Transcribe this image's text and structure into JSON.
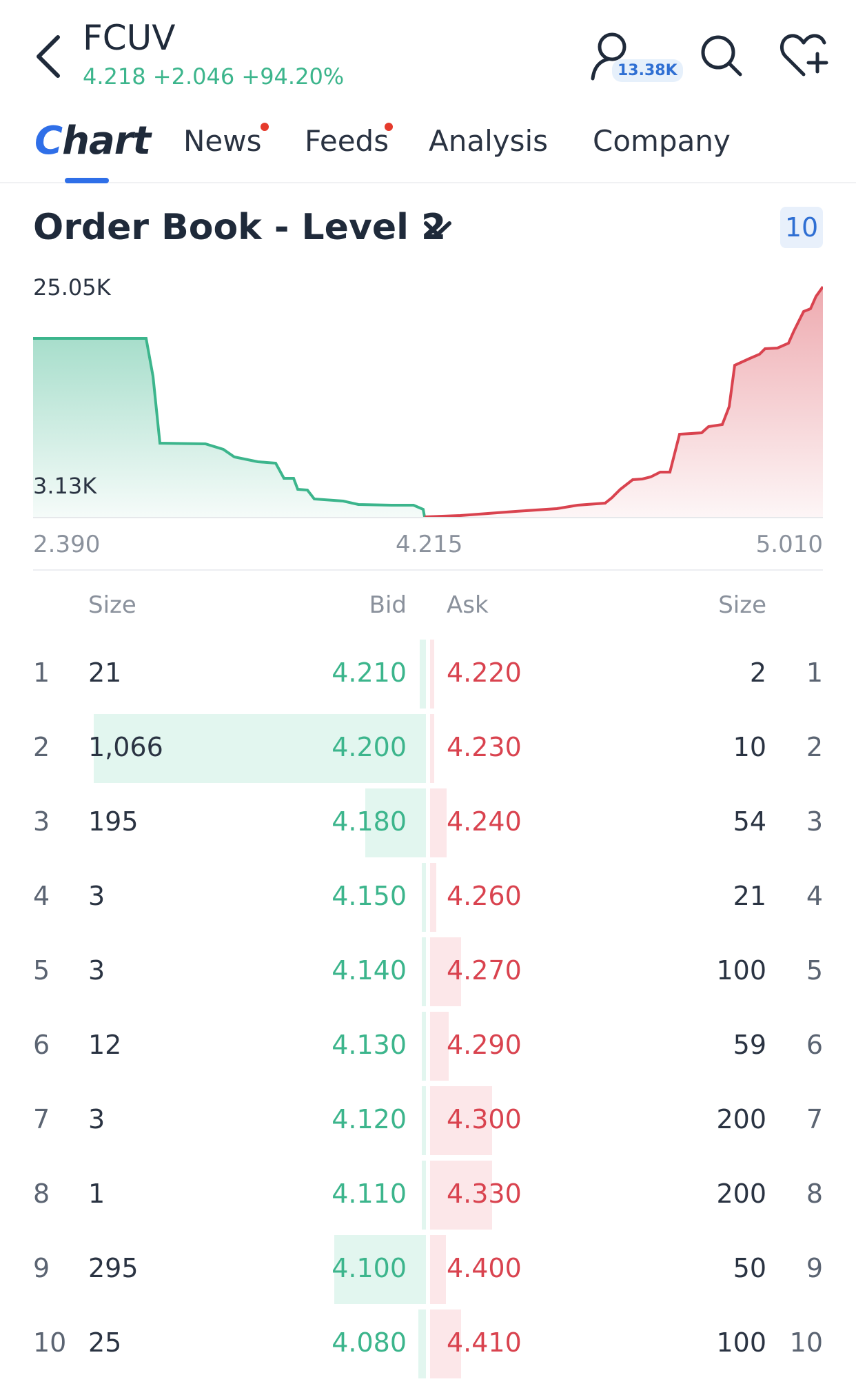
{
  "header": {
    "ticker": "FCUV",
    "quote": "4.218 +2.046 +94.20%",
    "followers": "13.38K"
  },
  "tabs": [
    {
      "label": "Chart",
      "active": true,
      "dot": false
    },
    {
      "label": "News",
      "active": false,
      "dot": true
    },
    {
      "label": "Feeds",
      "active": false,
      "dot": true
    },
    {
      "label": "Analysis",
      "active": false,
      "dot": false
    },
    {
      "label": "Company",
      "active": false,
      "dot": false
    }
  ],
  "section": {
    "title": "Order Book - Level 2",
    "level": "10"
  },
  "depth_chart": {
    "y_max_label": "25.05K",
    "y_min_label": "3.13K",
    "x_labels": [
      "2.390",
      "4.215",
      "5.010"
    ],
    "colors": {
      "bid": "#3cb58c",
      "ask": "#d9434f"
    }
  },
  "table": {
    "headers": {
      "bid_size": "Size",
      "bid": "Bid",
      "ask": "Ask",
      "ask_size": "Size"
    },
    "rows": [
      {
        "n": "1",
        "bid_size": "21",
        "bid": "4.210",
        "ask": "4.220",
        "ask_size": "2",
        "bid_qty": 21,
        "ask_qty": 2
      },
      {
        "n": "2",
        "bid_size": "1,066",
        "bid": "4.200",
        "ask": "4.230",
        "ask_size": "10",
        "bid_qty": 1066,
        "ask_qty": 10
      },
      {
        "n": "3",
        "bid_size": "195",
        "bid": "4.180",
        "ask": "4.240",
        "ask_size": "54",
        "bid_qty": 195,
        "ask_qty": 54
      },
      {
        "n": "4",
        "bid_size": "3",
        "bid": "4.150",
        "ask": "4.260",
        "ask_size": "21",
        "bid_qty": 3,
        "ask_qty": 21
      },
      {
        "n": "5",
        "bid_size": "3",
        "bid": "4.140",
        "ask": "4.270",
        "ask_size": "100",
        "bid_qty": 3,
        "ask_qty": 100
      },
      {
        "n": "6",
        "bid_size": "12",
        "bid": "4.130",
        "ask": "4.290",
        "ask_size": "59",
        "bid_qty": 12,
        "ask_qty": 59
      },
      {
        "n": "7",
        "bid_size": "3",
        "bid": "4.120",
        "ask": "4.300",
        "ask_size": "200",
        "bid_qty": 3,
        "ask_qty": 200
      },
      {
        "n": "8",
        "bid_size": "1",
        "bid": "4.110",
        "ask": "4.330",
        "ask_size": "200",
        "bid_qty": 1,
        "ask_qty": 200
      },
      {
        "n": "9",
        "bid_size": "295",
        "bid": "4.100",
        "ask": "4.400",
        "ask_size": "50",
        "bid_qty": 295,
        "ask_qty": 50
      },
      {
        "n": "10",
        "bid_size": "25",
        "bid": "4.080",
        "ask": "4.410",
        "ask_size": "100",
        "bid_qty": 25,
        "ask_qty": 100
      }
    ]
  }
}
